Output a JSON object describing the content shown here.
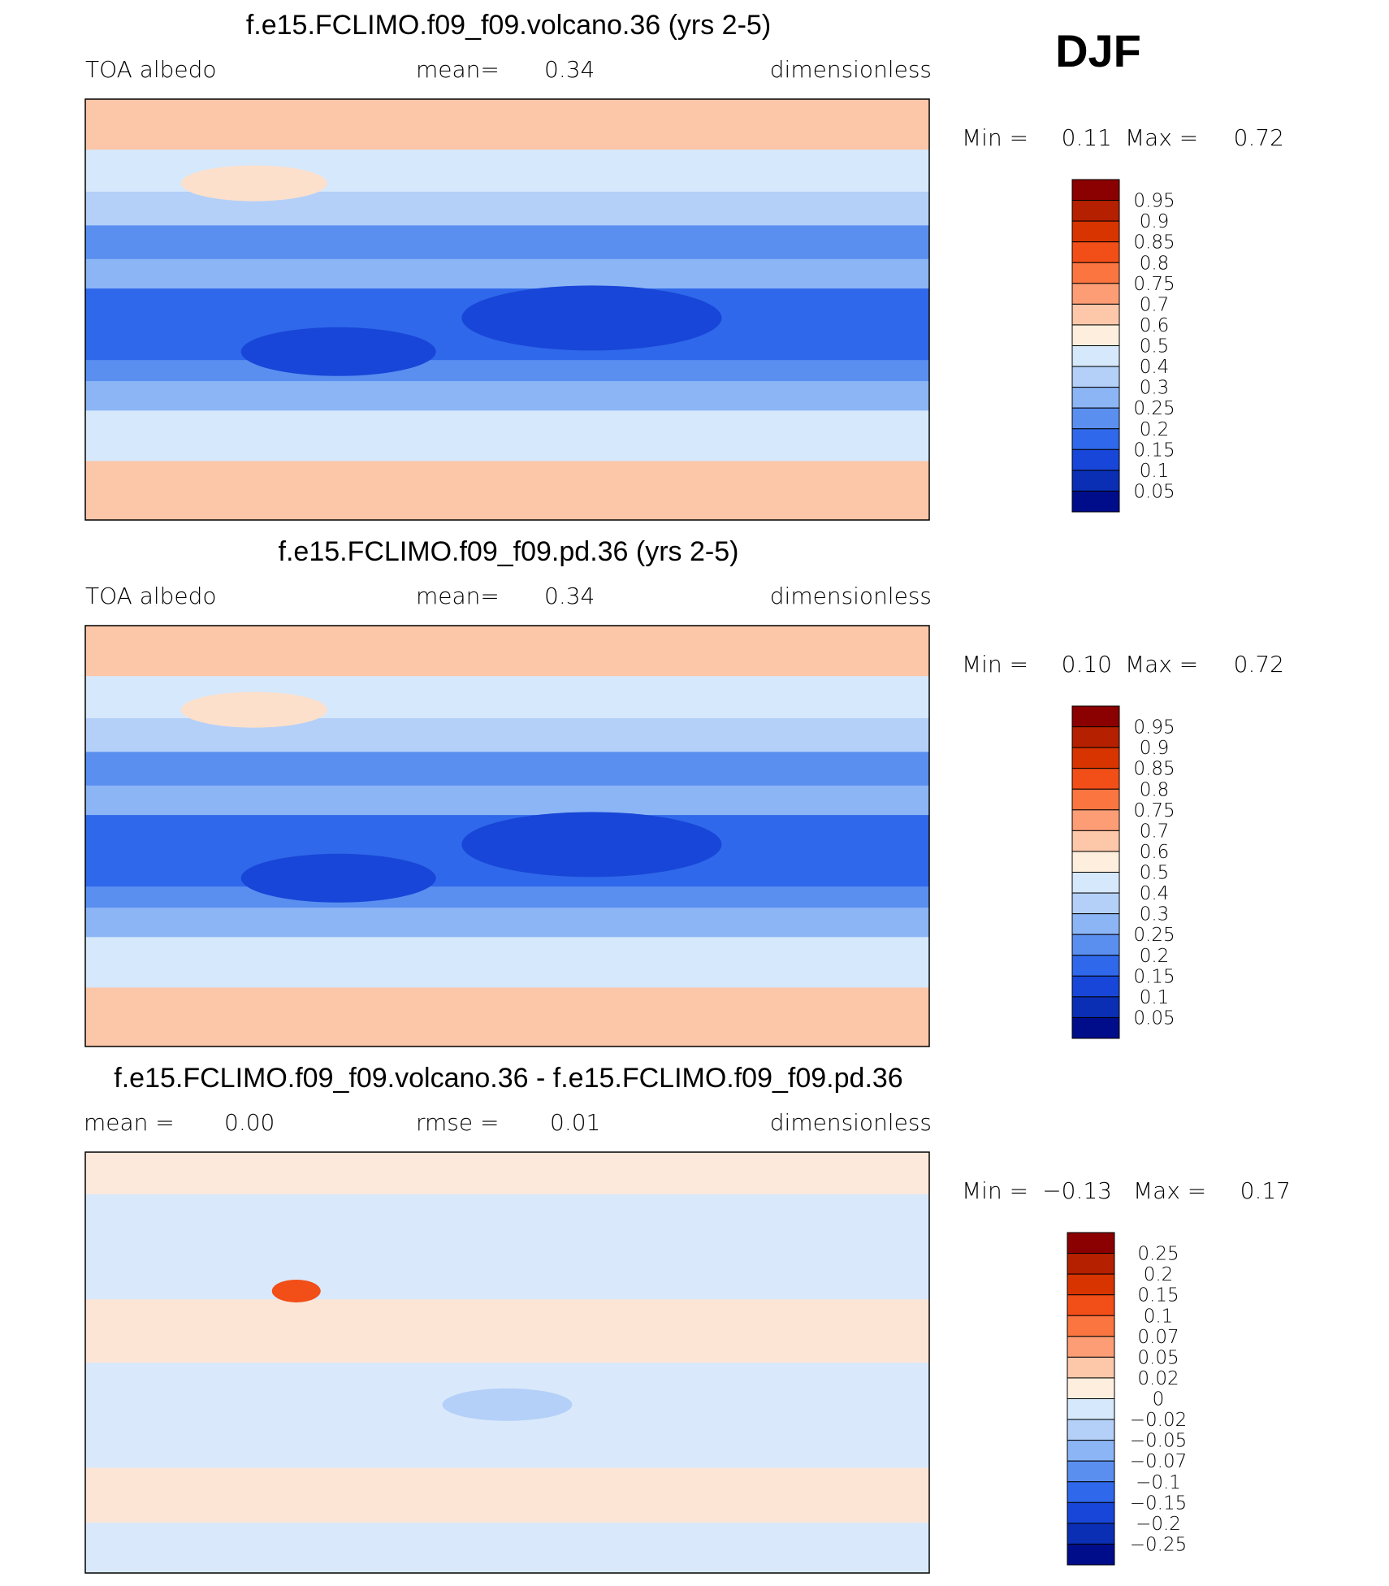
{
  "header": {
    "season": "DJF"
  },
  "panels": [
    {
      "title": "f.e15.FCLIMO.f09_f09.volcano.36 (yrs 2-5)",
      "left_label": "TOA albedo",
      "mid_label": "mean=",
      "mid_value": "0.34",
      "units": "dimensionless",
      "min_label": "Min =",
      "min": "0.11",
      "max_label": "Max =",
      "max": "0.72",
      "colorbar": {
        "labels": [
          "0.95",
          "0.9",
          "0.85",
          "0.8",
          "0.75",
          "0.7",
          "0.6",
          "0.5",
          "0.4",
          "0.3",
          "0.25",
          "0.2",
          "0.15",
          "0.1",
          "0.05"
        ],
        "colors": [
          "#8b0000",
          "#b52000",
          "#d83400",
          "#f24e18",
          "#fa7540",
          "#fc9d76",
          "#fdc7aa",
          "#fdeedd",
          "#d6e8fb",
          "#b4d0f8",
          "#8bb5f5",
          "#5a8ff0",
          "#2f68ea",
          "#1846d8",
          "#0a2fb5",
          "#000d8a"
        ]
      }
    },
    {
      "title": "f.e15.FCLIMO.f09_f09.pd.36 (yrs 2-5)",
      "left_label": "TOA albedo",
      "mid_label": "mean=",
      "mid_value": "0.34",
      "units": "dimensionless",
      "min_label": "Min =",
      "min": "0.10",
      "max_label": "Max =",
      "max": "0.72",
      "colorbar": {
        "labels": [
          "0.95",
          "0.9",
          "0.85",
          "0.8",
          "0.75",
          "0.7",
          "0.6",
          "0.5",
          "0.4",
          "0.3",
          "0.25",
          "0.2",
          "0.15",
          "0.1",
          "0.05"
        ],
        "colors": [
          "#8b0000",
          "#b52000",
          "#d83400",
          "#f24e18",
          "#fa7540",
          "#fc9d76",
          "#fdc7aa",
          "#fdeedd",
          "#d6e8fb",
          "#b4d0f8",
          "#8bb5f5",
          "#5a8ff0",
          "#2f68ea",
          "#1846d8",
          "#0a2fb5",
          "#000d8a"
        ]
      }
    },
    {
      "title": "f.e15.FCLIMO.f09_f09.volcano.36 - f.e15.FCLIMO.f09_f09.pd.36",
      "left_label": "mean =",
      "left_value": "0.00",
      "mid_label": "rmse =",
      "mid_value": "0.01",
      "units": "dimensionless",
      "min_label": "Min =",
      "min": "−0.13",
      "max_label": "Max =",
      "max": "0.17",
      "colorbar": {
        "labels": [
          "0.25",
          "0.2",
          "0.15",
          "0.1",
          "0.07",
          "0.05",
          "0.02",
          "0",
          "−0.02",
          "−0.05",
          "−0.07",
          "−0.1",
          "−0.15",
          "−0.2",
          "−0.25"
        ],
        "colors": [
          "#8b0000",
          "#b52000",
          "#d83400",
          "#f24e18",
          "#fa7540",
          "#fc9d76",
          "#fdc7aa",
          "#fdeedd",
          "#d6e8fb",
          "#b4d0f8",
          "#8bb5f5",
          "#5a8ff0",
          "#2f68ea",
          "#1846d8",
          "#0a2fb5",
          "#000d8a"
        ]
      }
    }
  ]
}
